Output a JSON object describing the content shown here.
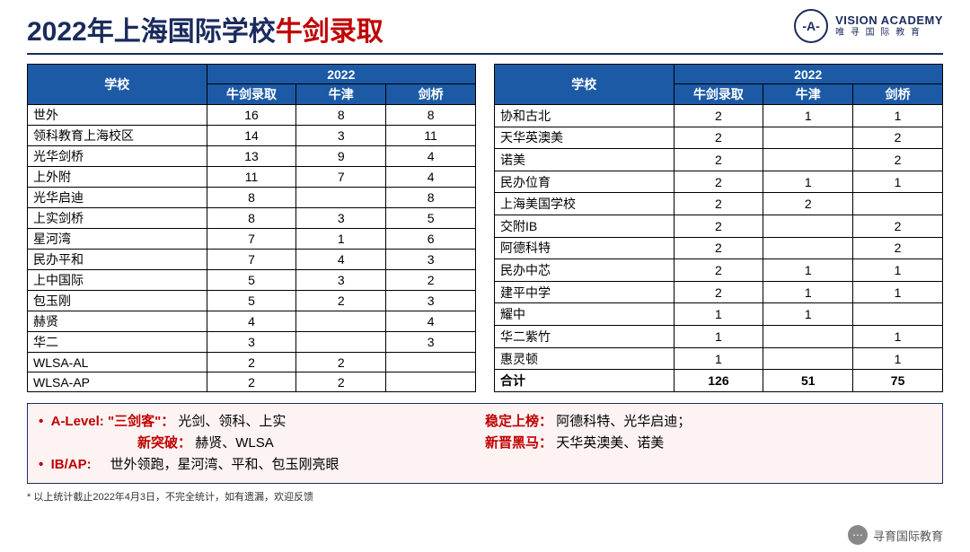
{
  "title": {
    "part1": "2022年上海国际学校",
    "part2": "牛剑录取"
  },
  "logo": {
    "mark": "-A-",
    "en": "VISION ACADEMY",
    "cn": "唯 寻 国 际 教 育"
  },
  "headers": {
    "school": "学校",
    "year": "2022",
    "total": "牛剑录取",
    "ox": "牛津",
    "cam": "剑桥"
  },
  "table1": [
    {
      "s": "世外",
      "t": "16",
      "o": "8",
      "c": "8"
    },
    {
      "s": "领科教育上海校区",
      "t": "14",
      "o": "3",
      "c": "11"
    },
    {
      "s": "光华剑桥",
      "t": "13",
      "o": "9",
      "c": "4"
    },
    {
      "s": "上外附",
      "t": "11",
      "o": "7",
      "c": "4"
    },
    {
      "s": "光华启迪",
      "t": "8",
      "o": "",
      "c": "8"
    },
    {
      "s": "上实剑桥",
      "t": "8",
      "o": "3",
      "c": "5"
    },
    {
      "s": "星河湾",
      "t": "7",
      "o": "1",
      "c": "6"
    },
    {
      "s": "民办平和",
      "t": "7",
      "o": "4",
      "c": "3"
    },
    {
      "s": "上中国际",
      "t": "5",
      "o": "3",
      "c": "2"
    },
    {
      "s": "包玉刚",
      "t": "5",
      "o": "2",
      "c": "3"
    },
    {
      "s": "赫贤",
      "t": "4",
      "o": "",
      "c": "4"
    },
    {
      "s": "华二",
      "t": "3",
      "o": "",
      "c": "3"
    },
    {
      "s": "WLSA-AL",
      "t": "2",
      "o": "2",
      "c": ""
    },
    {
      "s": "WLSA-AP",
      "t": "2",
      "o": "2",
      "c": ""
    }
  ],
  "table2": [
    {
      "s": "协和古北",
      "t": "2",
      "o": "1",
      "c": "1"
    },
    {
      "s": "天华英澳美",
      "t": "2",
      "o": "",
      "c": "2"
    },
    {
      "s": "诺美",
      "t": "2",
      "o": "",
      "c": "2"
    },
    {
      "s": "民办位育",
      "t": "2",
      "o": "1",
      "c": "1"
    },
    {
      "s": "上海美国学校",
      "t": "2",
      "o": "2",
      "c": ""
    },
    {
      "s": "交附IB",
      "t": "2",
      "o": "",
      "c": "2"
    },
    {
      "s": "阿德科特",
      "t": "2",
      "o": "",
      "c": "2"
    },
    {
      "s": "民办中芯",
      "t": "2",
      "o": "1",
      "c": "1"
    },
    {
      "s": "建平中学",
      "t": "2",
      "o": "1",
      "c": "1"
    },
    {
      "s": "耀中",
      "t": "1",
      "o": "1",
      "c": ""
    },
    {
      "s": "华二紫竹",
      "t": "1",
      "o": "",
      "c": "1"
    },
    {
      "s": "惠灵顿",
      "t": "1",
      "o": "",
      "c": "1"
    }
  ],
  "totals": {
    "label": "合计",
    "t": "126",
    "o": "51",
    "c": "75"
  },
  "notes": {
    "bullet": "•",
    "l1_label": "A-Level:",
    "l1_red": "\"三剑客\"：",
    "l1_text": "光剑、领科、上实",
    "l2_red": "新突破：",
    "l2_text": "赫贤、WLSA",
    "l3_label": "IB/AP:",
    "l3_text": "世外领跑，星河湾、平和、包玉刚亮眼",
    "r1_red": "稳定上榜：",
    "r1_text": "阿德科特、光华启迪；",
    "r2_red": "新晋黑马：",
    "r2_text": "天华英澳美、诺美"
  },
  "disclaimer": "* 以上统计截止2022年4月3日，不完全统计，如有遗漏，欢迎反馈",
  "footer": {
    "icon": "⋯",
    "text": "寻育国际教育"
  }
}
